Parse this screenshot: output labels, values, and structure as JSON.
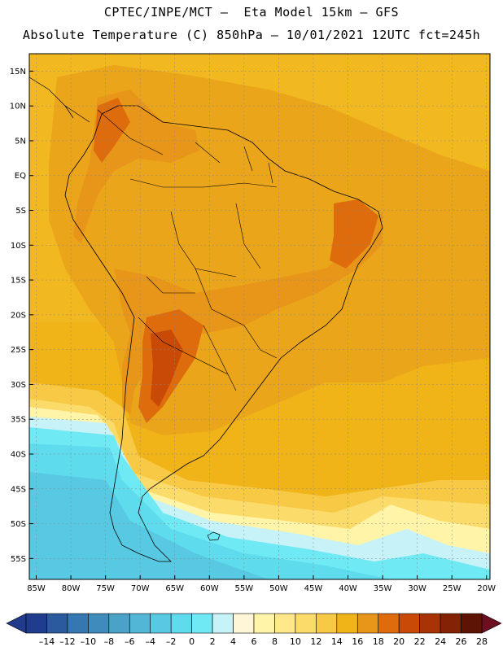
{
  "header": {
    "line1": "CPTEC/INPE/MCT –  Eta Model 15km – GFS",
    "line2": "Absolute Temperature (C) 850hPa – 10/01/2021 12UTC fct=245h"
  },
  "map": {
    "lon_range": [
      -86,
      -19.5
    ],
    "lat_range": [
      -58,
      17.5
    ],
    "lat_ticks": [
      "15N",
      "10N",
      "5N",
      "EQ",
      "5S",
      "10S",
      "15S",
      "20S",
      "25S",
      "30S",
      "35S",
      "40S",
      "45S",
      "50S",
      "55S"
    ],
    "lat_values": [
      15,
      10,
      5,
      0,
      -5,
      -10,
      -15,
      -20,
      -25,
      -30,
      -35,
      -40,
      -45,
      -50,
      -55
    ],
    "lon_ticks": [
      "85W",
      "80W",
      "75W",
      "70W",
      "65W",
      "60W",
      "55W",
      "50W",
      "45W",
      "40W",
      "35W",
      "30W",
      "25W",
      "20W"
    ],
    "lon_values": [
      -85,
      -80,
      -75,
      -70,
      -65,
      -60,
      -55,
      -50,
      -45,
      -40,
      -35,
      -30,
      -25,
      -20
    ],
    "grid": "dashed"
  },
  "colorbar": {
    "labels": [
      "-14",
      "-12",
      "-10",
      "-8",
      "-6",
      "-4",
      "-2",
      "0",
      "2",
      "4",
      "6",
      "8",
      "10",
      "12",
      "14",
      "16",
      "18",
      "20",
      "22",
      "24",
      "26",
      "28"
    ],
    "colors": [
      "#1f3d8c",
      "#2b5b9e",
      "#3577b0",
      "#3f8cbc",
      "#4aa2c8",
      "#52b6d6",
      "#58c9e2",
      "#5fdbee",
      "#6feaf5",
      "#c6f2f8",
      "#fff6d8",
      "#fff4a8",
      "#fee88a",
      "#fbdb6a",
      "#f7c944",
      "#f0b419",
      "#e89619",
      "#de6b0c",
      "#c94a06",
      "#a83304",
      "#832303",
      "#5f1303"
    ],
    "under_color": "#223b8a",
    "over_color": "#6d0f20"
  }
}
